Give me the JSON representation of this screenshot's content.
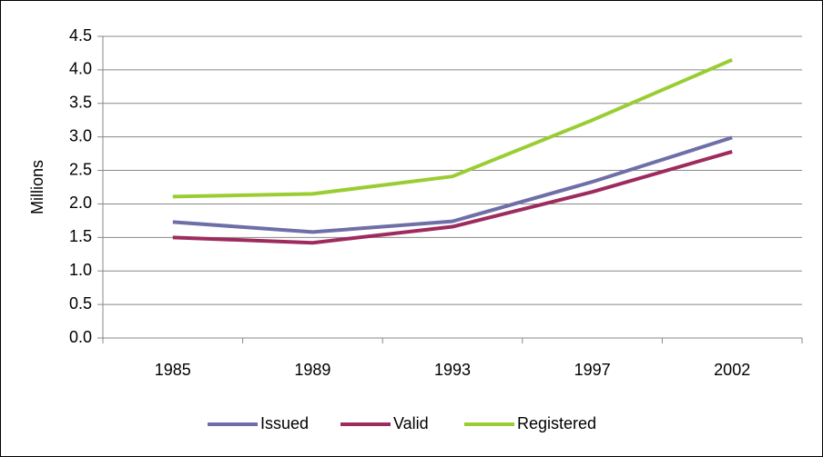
{
  "chart_data": {
    "type": "line",
    "y_label": "Millions",
    "categories": [
      "1985",
      "1989",
      "1993",
      "1997",
      "2002"
    ],
    "series": [
      {
        "name": "Issued",
        "color": "#6f6fa8",
        "values": [
          1.73,
          1.58,
          1.74,
          2.33,
          2.99
        ]
      },
      {
        "name": "Valid",
        "color": "#9e2b5e",
        "values": [
          1.5,
          1.42,
          1.66,
          2.18,
          2.78
        ]
      },
      {
        "name": "Registered",
        "color": "#9acd32",
        "values": [
          2.11,
          2.15,
          2.41,
          3.25,
          4.15
        ]
      }
    ],
    "ylim": [
      0,
      4.5
    ],
    "yticks": [
      {
        "value": 0,
        "label": "0.0"
      },
      0.5,
      {
        "value": 1,
        "label": "1.0"
      },
      1.5,
      {
        "value": 2,
        "label": "2.0"
      },
      2.5,
      {
        "value": 3,
        "label": "3.0"
      },
      3.5,
      {
        "value": 4,
        "label": "4.0"
      },
      4.5
    ],
    "grid": true,
    "legend": "bottom"
  }
}
